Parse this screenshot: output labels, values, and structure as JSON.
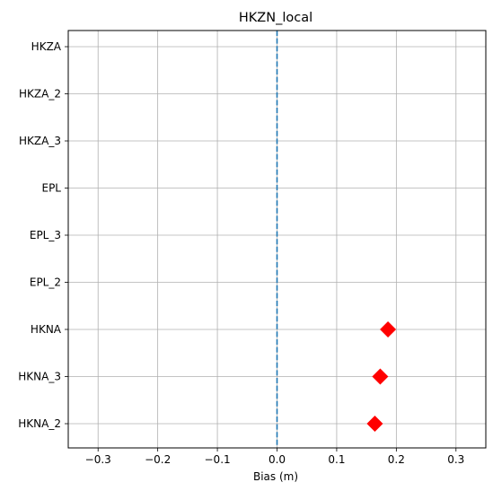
{
  "chart_data": {
    "type": "scatter",
    "title": "HKZN_local",
    "xlabel": "Bias (m)",
    "ylabel": "",
    "xlim": [
      -0.35,
      0.35
    ],
    "xticks": [
      -0.3,
      -0.2,
      -0.1,
      0.0,
      0.1,
      0.2,
      0.3
    ],
    "xtick_labels": [
      "−0.3",
      "−0.2",
      "−0.1",
      "0.0",
      "0.1",
      "0.2",
      "0.3"
    ],
    "categories": [
      "HKZA",
      "HKZA_2",
      "HKZA_3",
      "EPL",
      "EPL_3",
      "EPL_2",
      "HKNA",
      "HKNA_3",
      "HKNA_2"
    ],
    "points": [
      {
        "category": "HKNA",
        "x": 0.186
      },
      {
        "category": "HKNA_3",
        "x": 0.173
      },
      {
        "category": "HKNA_2",
        "x": 0.164
      }
    ],
    "reference_line": {
      "x": 0.0,
      "style": "dashed",
      "color": "#1f77b4"
    },
    "marker": {
      "shape": "diamond",
      "color": "#ff0000"
    },
    "grid": true
  }
}
